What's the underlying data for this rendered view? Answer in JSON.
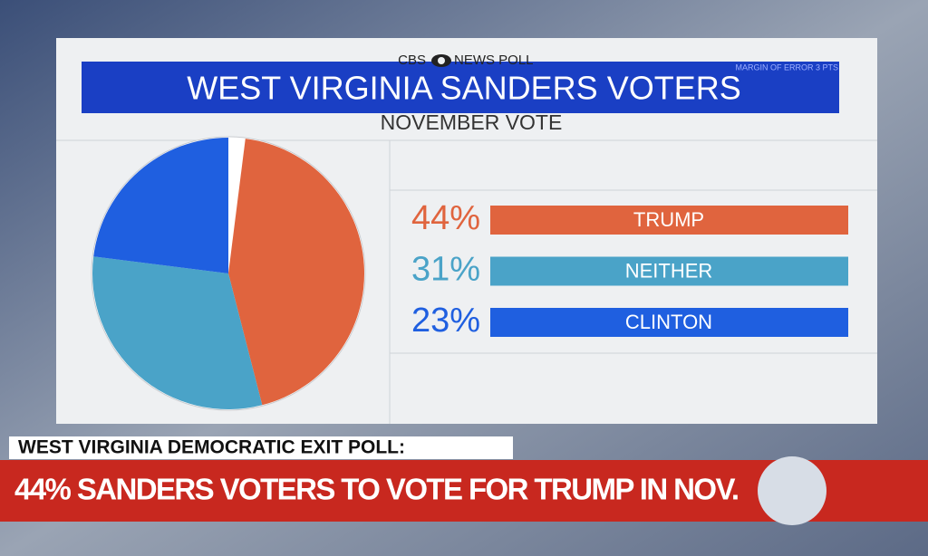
{
  "source": {
    "brand": "CBS",
    "suffix": "NEWS POLL",
    "margin_note": "MARGIN OF ERROR 3 PTS"
  },
  "chart_data": {
    "type": "pie",
    "title": "WEST VIRGINIA SANDERS VOTERS",
    "subtitle": "NOVEMBER VOTE",
    "categories": [
      "TRUMP",
      "NEITHER",
      "CLINTON"
    ],
    "values": [
      44,
      31,
      23
    ],
    "value_labels": [
      "44%",
      "31%",
      "23%"
    ],
    "colors": [
      "#e0643e",
      "#4aa3c8",
      "#1f5fe0"
    ]
  },
  "lower_third": {
    "label": "WEST VIRGINIA DEMOCRATIC EXIT POLL:",
    "headline": "44% SANDERS VOTERS TO VOTE FOR TRUMP IN NOV."
  }
}
